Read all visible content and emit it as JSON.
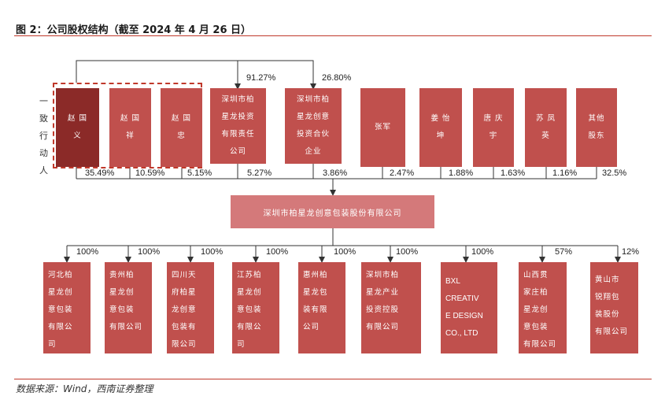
{
  "title": "图 2：公司股权结构（截至 2024 年 4 月 26 日）",
  "source": "数据来源：Wind，西南证券整理",
  "concert_label": "一致行动人",
  "top_pcts": {
    "p1": "91.27%",
    "p2": "26.80%"
  },
  "shareholders": [
    {
      "label": "赵 国\n义",
      "pct": "35.49%"
    },
    {
      "label": "赵 国\n祥",
      "pct": "10.59%"
    },
    {
      "label": "赵 国\n忠",
      "pct": "5.15%"
    },
    {
      "label": "深圳市柏\n星龙投资\n有限责任\n公司",
      "pct": "5.27%"
    },
    {
      "label": "深圳市柏\n星龙创意\n投资合伙\n企业",
      "pct": "3.86%"
    },
    {
      "label": "张军",
      "pct": "2.47%"
    },
    {
      "label": "姜 怡\n坤",
      "pct": "1.88%"
    },
    {
      "label": "唐 庆\n宇",
      "pct": "1.63%"
    },
    {
      "label": "苏 凤\n英",
      "pct": "1.16%"
    },
    {
      "label": "其他\n股东",
      "pct": "32.5%"
    }
  ],
  "company": "深圳市柏星龙创意包装股份有限公司",
  "subsidiaries": [
    {
      "label": "河北柏\n星龙创\n意包装\n有限公\n司",
      "pct": "100%"
    },
    {
      "label": "贵州柏\n星龙创\n意包装\n有限公司",
      "pct": "100%"
    },
    {
      "label": "四川天\n府柏星\n龙创意\n包装有\n限公司",
      "pct": "100%"
    },
    {
      "label": "江苏柏\n星龙创\n意包装\n有限公\n司",
      "pct": "100%"
    },
    {
      "label": "惠州柏\n星龙包\n装有限\n公司",
      "pct": "100%"
    },
    {
      "label": "深圳市柏\n星龙产业\n投资控股\n有限公司",
      "pct": "100%"
    },
    {
      "label": "BXL\nCREATIV\nE DESIGN\nCO., LTD",
      "pct": "100%"
    },
    {
      "label": "山西贯\n家庄柏\n星龙创\n意包装\n有限公司",
      "pct": "57%"
    },
    {
      "label": "黄山市\n锐翔包\n装股份\n有限公司",
      "pct": "12%"
    }
  ]
}
